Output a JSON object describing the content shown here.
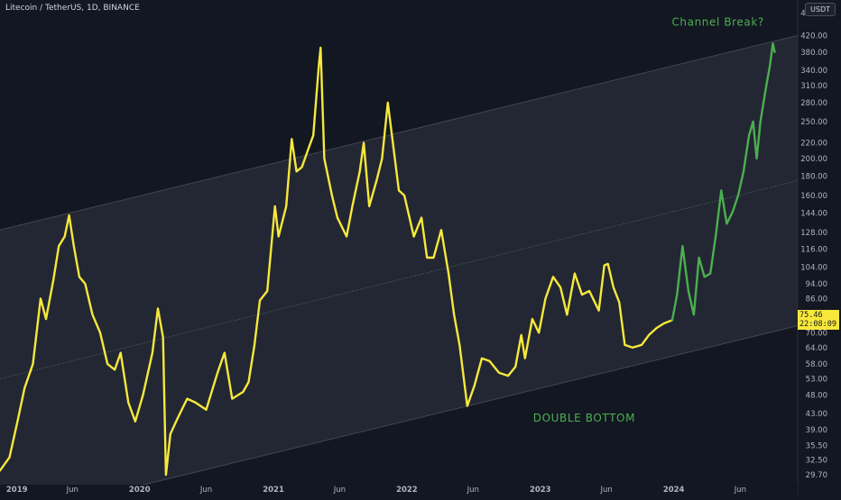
{
  "header": {
    "title": "Litecoin / TetherUS, 1D, BINANCE",
    "currency_button": "USDT"
  },
  "price_tag": {
    "price": "75.46",
    "countdown": "22:08:09"
  },
  "colors": {
    "background": "#131722",
    "axis_panel": "#1e222d",
    "channel_fill": "#2a2e39",
    "price_line": "#f7e83b",
    "annotation_line": "#4caf50",
    "midline": "#4c8a6b",
    "axis_text": "#b2b5be"
  },
  "chart_data": {
    "type": "line",
    "title": "Litecoin / TetherUS, 1D, BINANCE",
    "y_scale": "log",
    "ylim": [
      28,
      520
    ],
    "y_ticks": [
      "480.00",
      "420.00",
      "380.00",
      "340.00",
      "310.00",
      "280.00",
      "250.00",
      "220.00",
      "200.00",
      "180.00",
      "160.00",
      "144.00",
      "128.00",
      "116.00",
      "104.00",
      "94.00",
      "86.00",
      "78.00",
      "70.00",
      "64.00",
      "58.00",
      "53.00",
      "48.00",
      "43.00",
      "39.00",
      "35.50",
      "32.50",
      "29.70"
    ],
    "xlim": [
      "2018-12-15",
      "2024-12-05"
    ],
    "x_ticks": [
      {
        "date": "2019-01-01",
        "label": "2019"
      },
      {
        "date": "2019-07-01",
        "label": "Jun"
      },
      {
        "date": "2020-01-01",
        "label": "2020"
      },
      {
        "date": "2020-07-01",
        "label": "Jun"
      },
      {
        "date": "2021-01-01",
        "label": "2021"
      },
      {
        "date": "2021-07-01",
        "label": "Jun"
      },
      {
        "date": "2022-01-01",
        "label": "2022"
      },
      {
        "date": "2022-07-01",
        "label": "Jun"
      },
      {
        "date": "2023-01-01",
        "label": "2023"
      },
      {
        "date": "2023-07-01",
        "label": "Jun"
      },
      {
        "date": "2024-01-01",
        "label": "2024"
      },
      {
        "date": "2024-07-01",
        "label": "Jun"
      }
    ],
    "series": [
      {
        "color": "#f7e83b",
        "points": [
          [
            "2018-12-15",
            30.5
          ],
          [
            "2019-01-10",
            33
          ],
          [
            "2019-02-01",
            41
          ],
          [
            "2019-02-20",
            50
          ],
          [
            "2019-03-15",
            58
          ],
          [
            "2019-04-05",
            86
          ],
          [
            "2019-04-20",
            76
          ],
          [
            "2019-05-10",
            96
          ],
          [
            "2019-05-25",
            118
          ],
          [
            "2019-06-10",
            125
          ],
          [
            "2019-06-22",
            142
          ],
          [
            "2019-07-05",
            118
          ],
          [
            "2019-07-20",
            98
          ],
          [
            "2019-08-05",
            94
          ],
          [
            "2019-08-25",
            78
          ],
          [
            "2019-09-15",
            70
          ],
          [
            "2019-10-05",
            58
          ],
          [
            "2019-10-25",
            56
          ],
          [
            "2019-11-10",
            62
          ],
          [
            "2019-12-01",
            46
          ],
          [
            "2019-12-20",
            41
          ],
          [
            "2020-01-10",
            48
          ],
          [
            "2020-02-05",
            62
          ],
          [
            "2020-02-20",
            81
          ],
          [
            "2020-03-05",
            68
          ],
          [
            "2020-03-13",
            29.7
          ],
          [
            "2020-03-25",
            38
          ],
          [
            "2020-04-15",
            42
          ],
          [
            "2020-05-10",
            47
          ],
          [
            "2020-06-01",
            46
          ],
          [
            "2020-07-01",
            44
          ],
          [
            "2020-08-01",
            55
          ],
          [
            "2020-08-20",
            62
          ],
          [
            "2020-09-10",
            47
          ],
          [
            "2020-10-10",
            49
          ],
          [
            "2020-10-25",
            52
          ],
          [
            "2020-11-10",
            65
          ],
          [
            "2020-11-25",
            85
          ],
          [
            "2020-12-15",
            90
          ],
          [
            "2021-01-05",
            150
          ],
          [
            "2021-01-15",
            125
          ],
          [
            "2021-02-05",
            150
          ],
          [
            "2021-02-20",
            225
          ],
          [
            "2021-03-05",
            185
          ],
          [
            "2021-03-20",
            190
          ],
          [
            "2021-04-05",
            210
          ],
          [
            "2021-04-20",
            230
          ],
          [
            "2021-05-05",
            350
          ],
          [
            "2021-05-10",
            390
          ],
          [
            "2021-05-20",
            200
          ],
          [
            "2021-06-10",
            160
          ],
          [
            "2021-06-25",
            140
          ],
          [
            "2021-07-20",
            125
          ],
          [
            "2021-08-05",
            150
          ],
          [
            "2021-08-25",
            185
          ],
          [
            "2021-09-05",
            220
          ],
          [
            "2021-09-20",
            150
          ],
          [
            "2021-10-10",
            175
          ],
          [
            "2021-10-25",
            200
          ],
          [
            "2021-11-10",
            280
          ],
          [
            "2021-11-25",
            215
          ],
          [
            "2021-12-10",
            165
          ],
          [
            "2021-12-25",
            160
          ],
          [
            "2022-01-20",
            125
          ],
          [
            "2022-02-10",
            140
          ],
          [
            "2022-02-25",
            110
          ],
          [
            "2022-03-15",
            110
          ],
          [
            "2022-04-05",
            130
          ],
          [
            "2022-04-25",
            100
          ],
          [
            "2022-05-10",
            78
          ],
          [
            "2022-05-25",
            65
          ],
          [
            "2022-06-15",
            45
          ],
          [
            "2022-07-05",
            51
          ],
          [
            "2022-07-25",
            60
          ],
          [
            "2022-08-15",
            59
          ],
          [
            "2022-09-10",
            55
          ],
          [
            "2022-10-05",
            54
          ],
          [
            "2022-10-25",
            57
          ],
          [
            "2022-11-10",
            69
          ],
          [
            "2022-11-20",
            60
          ],
          [
            "2022-12-10",
            76
          ],
          [
            "2022-12-28",
            70
          ],
          [
            "2023-01-15",
            86
          ],
          [
            "2023-02-05",
            98
          ],
          [
            "2023-02-25",
            92
          ],
          [
            "2023-03-15",
            78
          ],
          [
            "2023-04-05",
            100
          ],
          [
            "2023-04-25",
            88
          ],
          [
            "2023-05-15",
            90
          ],
          [
            "2023-06-10",
            80
          ],
          [
            "2023-06-25",
            105
          ],
          [
            "2023-07-05",
            106
          ],
          [
            "2023-07-20",
            92
          ],
          [
            "2023-08-05",
            84
          ],
          [
            "2023-08-20",
            65
          ],
          [
            "2023-09-10",
            64
          ],
          [
            "2023-10-05",
            65
          ],
          [
            "2023-10-25",
            69
          ],
          [
            "2023-11-15",
            72
          ],
          [
            "2023-12-05",
            74
          ],
          [
            "2023-12-28",
            75.46
          ]
        ]
      },
      {
        "color": "#4caf50",
        "points": [
          [
            "2023-12-28",
            75.46
          ],
          [
            "2024-01-10",
            88
          ],
          [
            "2024-01-25",
            118
          ],
          [
            "2024-02-10",
            90
          ],
          [
            "2024-02-25",
            78
          ],
          [
            "2024-03-10",
            110
          ],
          [
            "2024-03-25",
            98
          ],
          [
            "2024-04-10",
            100
          ],
          [
            "2024-04-25",
            126
          ],
          [
            "2024-05-10",
            165
          ],
          [
            "2024-05-25",
            135
          ],
          [
            "2024-06-10",
            145
          ],
          [
            "2024-06-25",
            160
          ],
          [
            "2024-07-10",
            185
          ],
          [
            "2024-07-25",
            230
          ],
          [
            "2024-08-05",
            250
          ],
          [
            "2024-08-15",
            200
          ],
          [
            "2024-08-25",
            250
          ],
          [
            "2024-09-10",
            310
          ],
          [
            "2024-09-20",
            350
          ],
          [
            "2024-09-28",
            400
          ],
          [
            "2024-10-03",
            380
          ]
        ]
      }
    ],
    "channel": {
      "upper": [
        [
          "2018-12-15",
          130
        ],
        [
          "2024-12-05",
          420
        ]
      ],
      "lower": [
        [
          "2020-05-01",
          29.7
        ],
        [
          "2024-12-05",
          73
        ]
      ],
      "mid": [
        [
          "2018-12-15",
          53
        ],
        [
          "2024-12-05",
          175
        ]
      ]
    },
    "annotations": [
      {
        "text": "Channel Break?",
        "date": "2024-05-01",
        "value": 445,
        "color": "#4caf50"
      },
      {
        "text": "DOUBLE BOTTOM",
        "date": "2023-05-01",
        "value": 41,
        "color": "#4caf50"
      }
    ]
  }
}
